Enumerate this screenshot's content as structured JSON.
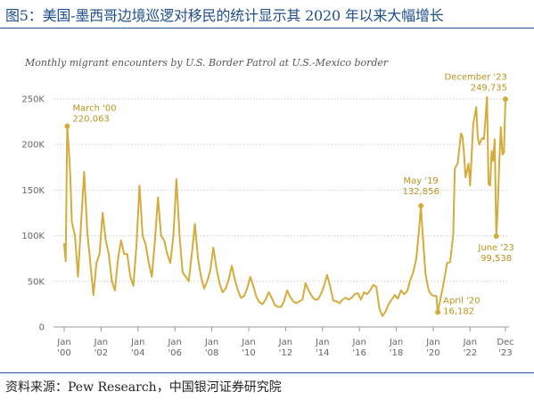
{
  "figure_title": "图5：美国-墨西哥边境巡逻对移民的统计显示其 2020 年以来大幅增长",
  "source_note": "资料来源：Pew Research，中国银河证券研究院",
  "chart_data": {
    "type": "line",
    "title": "Monthly migrant encounters by U.S. Border Patrol at U.S.-Mexico border",
    "xlabel": "",
    "ylabel": "",
    "ylim": [
      0,
      250000
    ],
    "xlim": [
      "2000-01",
      "2023-12"
    ],
    "grid": true,
    "line_color": "#d4ac3c",
    "y_ticks": [
      {
        "value": 0,
        "label": "0"
      },
      {
        "value": 50000,
        "label": "50K"
      },
      {
        "value": 100000,
        "label": "100K"
      },
      {
        "value": 150000,
        "label": "150K"
      },
      {
        "value": 200000,
        "label": "200K"
      },
      {
        "value": 250000,
        "label": "250K"
      }
    ],
    "x_ticks": [
      {
        "date": "2000-01",
        "label": [
          "Jan",
          "'00"
        ]
      },
      {
        "date": "2002-01",
        "label": [
          "Jan",
          "'02"
        ]
      },
      {
        "date": "2004-01",
        "label": [
          "Jan",
          "'04"
        ]
      },
      {
        "date": "2006-01",
        "label": [
          "Jan",
          "'06"
        ]
      },
      {
        "date": "2008-01",
        "label": [
          "Jan",
          "'08"
        ]
      },
      {
        "date": "2010-01",
        "label": [
          "Jan",
          "'10"
        ]
      },
      {
        "date": "2012-01",
        "label": [
          "Jan",
          "'12"
        ]
      },
      {
        "date": "2014-01",
        "label": [
          "Jan",
          "'14"
        ]
      },
      {
        "date": "2016-01",
        "label": [
          "Jan",
          "'16"
        ]
      },
      {
        "date": "2018-01",
        "label": [
          "Jan",
          "'18"
        ]
      },
      {
        "date": "2020-01",
        "label": [
          "Jan",
          "'20"
        ]
      },
      {
        "date": "2022-01",
        "label": [
          "Jan",
          "'22"
        ]
      },
      {
        "date": "2023-12",
        "label": [
          "Dec",
          "'23"
        ]
      }
    ],
    "series": [
      {
        "points": [
          [
            "2000-01",
            91000
          ],
          [
            "2000-02",
            72000
          ],
          [
            "2000-03",
            220063
          ],
          [
            "2000-04",
            195000
          ],
          [
            "2000-05",
            165000
          ],
          [
            "2000-06",
            115000
          ],
          [
            "2000-08",
            100000
          ],
          [
            "2000-10",
            55000
          ],
          [
            "2000-12",
            115000
          ],
          [
            "2001-02",
            170000
          ],
          [
            "2001-04",
            105000
          ],
          [
            "2001-06",
            70000
          ],
          [
            "2001-08",
            35000
          ],
          [
            "2001-10",
            70000
          ],
          [
            "2001-12",
            80000
          ],
          [
            "2002-02",
            125000
          ],
          [
            "2002-04",
            95000
          ],
          [
            "2002-06",
            80000
          ],
          [
            "2002-08",
            50000
          ],
          [
            "2002-10",
            40000
          ],
          [
            "2002-12",
            75000
          ],
          [
            "2003-02",
            95000
          ],
          [
            "2003-04",
            80000
          ],
          [
            "2003-06",
            80000
          ],
          [
            "2003-08",
            55000
          ],
          [
            "2003-10",
            45000
          ],
          [
            "2003-12",
            90000
          ],
          [
            "2004-02",
            155000
          ],
          [
            "2004-04",
            100000
          ],
          [
            "2004-06",
            90000
          ],
          [
            "2004-08",
            70000
          ],
          [
            "2004-10",
            55000
          ],
          [
            "2004-12",
            95000
          ],
          [
            "2005-02",
            142000
          ],
          [
            "2005-04",
            100000
          ],
          [
            "2005-06",
            95000
          ],
          [
            "2005-08",
            80000
          ],
          [
            "2005-10",
            70000
          ],
          [
            "2005-12",
            100000
          ],
          [
            "2006-02",
            162000
          ],
          [
            "2006-04",
            100000
          ],
          [
            "2006-06",
            60000
          ],
          [
            "2006-08",
            55000
          ],
          [
            "2006-10",
            50000
          ],
          [
            "2006-12",
            80000
          ],
          [
            "2007-02",
            113000
          ],
          [
            "2007-04",
            75000
          ],
          [
            "2007-06",
            55000
          ],
          [
            "2007-08",
            42000
          ],
          [
            "2007-10",
            50000
          ],
          [
            "2007-12",
            62000
          ],
          [
            "2008-02",
            87000
          ],
          [
            "2008-04",
            65000
          ],
          [
            "2008-06",
            48000
          ],
          [
            "2008-08",
            38000
          ],
          [
            "2008-10",
            42000
          ],
          [
            "2008-12",
            52000
          ],
          [
            "2009-02",
            67000
          ],
          [
            "2009-04",
            52000
          ],
          [
            "2009-06",
            40000
          ],
          [
            "2009-08",
            32000
          ],
          [
            "2009-10",
            34000
          ],
          [
            "2009-12",
            42000
          ],
          [
            "2010-02",
            55000
          ],
          [
            "2010-04",
            45000
          ],
          [
            "2010-06",
            33000
          ],
          [
            "2010-08",
            27000
          ],
          [
            "2010-10",
            25000
          ],
          [
            "2010-12",
            30000
          ],
          [
            "2011-02",
            38000
          ],
          [
            "2011-04",
            32000
          ],
          [
            "2011-06",
            24000
          ],
          [
            "2011-08",
            22000
          ],
          [
            "2011-10",
            22000
          ],
          [
            "2011-12",
            28000
          ],
          [
            "2012-02",
            40000
          ],
          [
            "2012-04",
            33000
          ],
          [
            "2012-06",
            28000
          ],
          [
            "2012-08",
            26000
          ],
          [
            "2012-10",
            28000
          ],
          [
            "2012-12",
            30000
          ],
          [
            "2013-02",
            48000
          ],
          [
            "2013-04",
            40000
          ],
          [
            "2013-06",
            34000
          ],
          [
            "2013-08",
            30000
          ],
          [
            "2013-10",
            30000
          ],
          [
            "2013-12",
            36000
          ],
          [
            "2014-02",
            45000
          ],
          [
            "2014-04",
            57000
          ],
          [
            "2014-06",
            44000
          ],
          [
            "2014-08",
            29000
          ],
          [
            "2014-10",
            28000
          ],
          [
            "2014-12",
            26000
          ],
          [
            "2015-02",
            30000
          ],
          [
            "2015-04",
            32000
          ],
          [
            "2015-06",
            30000
          ],
          [
            "2015-08",
            32000
          ],
          [
            "2015-10",
            36000
          ],
          [
            "2015-12",
            37000
          ],
          [
            "2016-02",
            30000
          ],
          [
            "2016-04",
            38000
          ],
          [
            "2016-06",
            36000
          ],
          [
            "2016-08",
            40000
          ],
          [
            "2016-10",
            46000
          ],
          [
            "2016-12",
            44000
          ],
          [
            "2017-02",
            20000
          ],
          [
            "2017-04",
            12000
          ],
          [
            "2017-06",
            17000
          ],
          [
            "2017-08",
            25000
          ],
          [
            "2017-10",
            30000
          ],
          [
            "2017-12",
            35000
          ],
          [
            "2018-02",
            31000
          ],
          [
            "2018-04",
            40000
          ],
          [
            "2018-06",
            36000
          ],
          [
            "2018-08",
            39000
          ],
          [
            "2018-10",
            51000
          ],
          [
            "2018-12",
            60000
          ],
          [
            "2019-02",
            75000
          ],
          [
            "2019-04",
            110000
          ],
          [
            "2019-05",
            132856
          ],
          [
            "2019-06",
            105000
          ],
          [
            "2019-08",
            58000
          ],
          [
            "2019-10",
            40000
          ],
          [
            "2019-12",
            35000
          ],
          [
            "2020-02",
            34000
          ],
          [
            "2020-03",
            34000
          ],
          [
            "2020-04",
            16182
          ],
          [
            "2020-06",
            33000
          ],
          [
            "2020-08",
            50000
          ],
          [
            "2020-10",
            70000
          ],
          [
            "2020-12",
            71000
          ],
          [
            "2021-02",
            101000
          ],
          [
            "2021-03",
            173000
          ],
          [
            "2021-05",
            180000
          ],
          [
            "2021-07",
            212000
          ],
          [
            "2021-08",
            209000
          ],
          [
            "2021-09",
            192000
          ],
          [
            "2021-10",
            164000
          ],
          [
            "2021-12",
            179000
          ],
          [
            "2022-01",
            155000
          ],
          [
            "2022-03",
            222000
          ],
          [
            "2022-05",
            241000
          ],
          [
            "2022-06",
            207000
          ],
          [
            "2022-07",
            200000
          ],
          [
            "2022-08",
            204000
          ],
          [
            "2022-09",
            207000
          ],
          [
            "2022-10",
            206000
          ],
          [
            "2022-12",
            252000
          ],
          [
            "2023-01",
            157000
          ],
          [
            "2023-02",
            155000
          ],
          [
            "2023-03",
            193000
          ],
          [
            "2023-04",
            182000
          ],
          [
            "2023-05",
            206000
          ],
          [
            "2023-06",
            99538
          ],
          [
            "2023-07",
            132000
          ],
          [
            "2023-08",
            181000
          ],
          [
            "2023-09",
            219000
          ],
          [
            "2023-10",
            189000
          ],
          [
            "2023-11",
            191000
          ],
          [
            "2023-12",
            249735
          ]
        ]
      }
    ],
    "annotations": [
      {
        "date": "2000-03",
        "value": 220063,
        "lines": [
          "March '00",
          "220,063"
        ],
        "anchor": "start"
      },
      {
        "date": "2019-05",
        "value": 132856,
        "lines": [
          "May '19",
          "132,856"
        ],
        "anchor": "middle"
      },
      {
        "date": "2020-04",
        "value": 16182,
        "lines": [
          "April '20",
          "16,182"
        ],
        "anchor": "start"
      },
      {
        "date": "2023-06",
        "value": 99538,
        "lines": [
          "June '23",
          "99,538"
        ],
        "anchor": "middle"
      },
      {
        "date": "2023-12",
        "value": 249735,
        "lines": [
          "December '23",
          "249,735"
        ],
        "anchor": "end"
      }
    ]
  }
}
